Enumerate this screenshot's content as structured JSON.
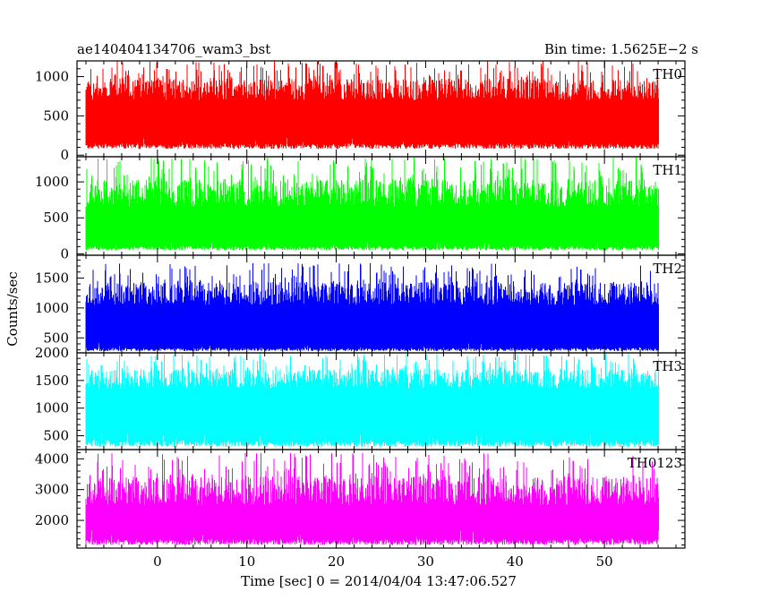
{
  "chart_data": {
    "type": "line",
    "title": "ae140404134706_wam3_bst",
    "subtitle": "Bin time: 1.5625E−2 s",
    "xlabel": "Time [sec] 0 = 2014/04/04 13:47:06.527",
    "ylabel": "Counts/sec",
    "xlim": [
      -9,
      59
    ],
    "x_ticks": [
      0,
      10,
      20,
      30,
      40,
      50
    ],
    "data_x_range": [
      -8,
      56
    ],
    "grid": false,
    "panels": [
      {
        "name": "TH0",
        "color": "#ff0000",
        "ylim": [
          -20,
          1200
        ],
        "y_ticks": [
          0,
          500,
          1000
        ],
        "baseline_range": [
          80,
          250
        ],
        "peak_range": [
          700,
          1200
        ],
        "median": 500
      },
      {
        "name": "TH1",
        "color": "#00ff00",
        "ylim": [
          -20,
          1350
        ],
        "y_ticks": [
          0,
          500,
          1000
        ],
        "baseline_range": [
          50,
          200
        ],
        "peak_range": [
          650,
          1350
        ],
        "median": 430
      },
      {
        "name": "TH2",
        "color": "#0000ff",
        "ylim": [
          250,
          1880
        ],
        "y_ticks": [
          500,
          1000,
          1500
        ],
        "baseline_range": [
          280,
          420
        ],
        "peak_range": [
          1050,
          1750
        ],
        "median": 800
      },
      {
        "name": "TH3",
        "color": "#00ffff",
        "ylim": [
          250,
          2000
        ],
        "y_ticks": [
          500,
          1000,
          1500,
          2000
        ],
        "baseline_range": [
          300,
          600
        ],
        "peak_range": [
          1350,
          2000
        ],
        "median": 1000
      },
      {
        "name": "TH0123",
        "color": "#ff00ff",
        "ylim": [
          1100,
          4300
        ],
        "y_ticks": [
          2000,
          3000,
          4000
        ],
        "baseline_range": [
          1200,
          1700
        ],
        "peak_range": [
          2500,
          4200
        ],
        "median": 2600
      }
    ]
  }
}
